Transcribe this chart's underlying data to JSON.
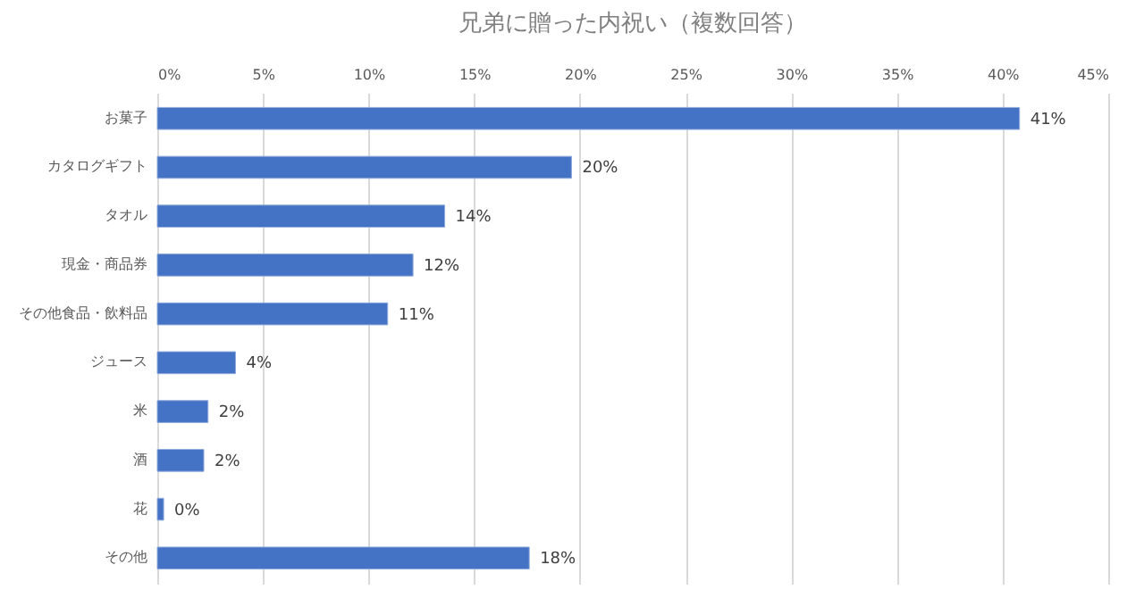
{
  "chart_data": {
    "type": "bar",
    "orientation": "horizontal",
    "title": "兄弟に贈った内祝い（複数回答）",
    "categories": [
      "お菓子",
      "カタログギフト",
      "タオル",
      "現金・商品券",
      "その他食品・飲料品",
      "ジュース",
      "米",
      "酒",
      "花",
      "その他"
    ],
    "values": [
      40.8,
      19.6,
      13.6,
      12.1,
      10.9,
      3.7,
      2.4,
      2.2,
      0.3,
      17.6
    ],
    "value_labels": [
      "41%",
      "20%",
      "14%",
      "12%",
      "11%",
      "4%",
      "2%",
      "2%",
      "0%",
      "18%"
    ],
    "color": "#4472c4",
    "xlim": [
      0,
      45
    ],
    "xticks": [
      {
        "value": 0,
        "label": "0%"
      },
      {
        "value": 5,
        "label": "5%"
      },
      {
        "value": 10,
        "label": "10%"
      },
      {
        "value": 15,
        "label": "15%"
      },
      {
        "value": 20,
        "label": "20%"
      },
      {
        "value": 25,
        "label": "25%"
      },
      {
        "value": 30,
        "label": "30%"
      },
      {
        "value": 35,
        "label": "35%"
      },
      {
        "value": 40,
        "label": "40%"
      },
      {
        "value": 45,
        "label": "45%"
      }
    ],
    "grid": "x"
  }
}
